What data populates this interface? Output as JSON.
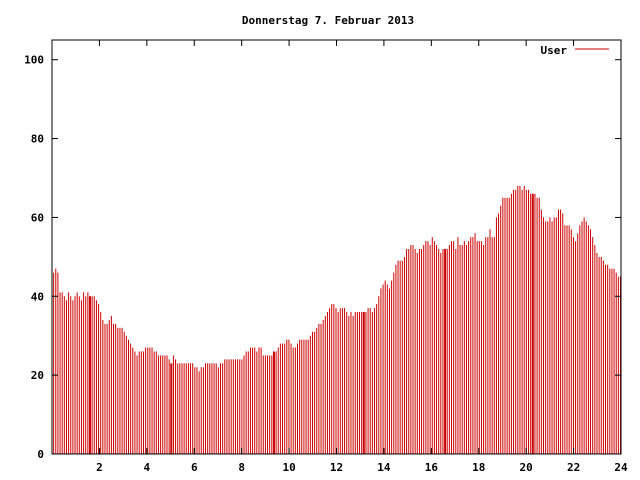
{
  "chart_data": {
    "type": "bar",
    "title": "Donnerstag 7. Februar 2013",
    "xlabel": "",
    "ylabel": "",
    "xlim": [
      0,
      24
    ],
    "ylim": [
      0,
      105
    ],
    "x_ticks": [
      "2",
      "4",
      "6",
      "8",
      "10",
      "12",
      "14",
      "16",
      "18",
      "20",
      "22",
      "24"
    ],
    "y_ticks": [
      "0",
      "20",
      "40",
      "60",
      "80",
      "100"
    ],
    "grid": false,
    "legend_position": "top-right",
    "series": [
      {
        "name": "User",
        "color": "#cc0000",
        "values": [
          46,
          47,
          46,
          41,
          41,
          40,
          39,
          41,
          40,
          39,
          40,
          41,
          40,
          39,
          41,
          40,
          41,
          40,
          40,
          40,
          39,
          38,
          36,
          34,
          33,
          33,
          34,
          35,
          33,
          33,
          32,
          32,
          32,
          31,
          30,
          29,
          28,
          27,
          26,
          25,
          26,
          26,
          26,
          27,
          27,
          27,
          27,
          26,
          26,
          25,
          25,
          25,
          25,
          25,
          24,
          23,
          25,
          24,
          23,
          23,
          23,
          23,
          23,
          23,
          23,
          23,
          22,
          22,
          21,
          22,
          22,
          23,
          23,
          23,
          23,
          23,
          23,
          22,
          23,
          23,
          24,
          24,
          24,
          24,
          24,
          24,
          24,
          24,
          24,
          25,
          26,
          26,
          27,
          27,
          27,
          26,
          27,
          27,
          25,
          25,
          25,
          25,
          25,
          26,
          26,
          27,
          28,
          28,
          28,
          29,
          29,
          28,
          27,
          27,
          28,
          29,
          29,
          29,
          29,
          29,
          30,
          31,
          31,
          32,
          33,
          33,
          34,
          35,
          36,
          37,
          38,
          38,
          37,
          36,
          37,
          37,
          37,
          36,
          35,
          36,
          35,
          36,
          36,
          36,
          36,
          36,
          36,
          37,
          37,
          36,
          37,
          38,
          40,
          42,
          43,
          44,
          43,
          42,
          44,
          46,
          48,
          49,
          49,
          49,
          50,
          52,
          52,
          53,
          53,
          52,
          51,
          52,
          52,
          53,
          54,
          54,
          53,
          55,
          54,
          53,
          52,
          51,
          52,
          52,
          52,
          53,
          54,
          54,
          52,
          55,
          53,
          53,
          54,
          53,
          54,
          55,
          55,
          56,
          54,
          54,
          54,
          53,
          55,
          55,
          57,
          55,
          55,
          60,
          61,
          63,
          65,
          65,
          65,
          65,
          66,
          67,
          67,
          68,
          68,
          67,
          68,
          67,
          67,
          66,
          66,
          66,
          65,
          65,
          62,
          60,
          59,
          59,
          60,
          59,
          60,
          60,
          62,
          62,
          61,
          58,
          58,
          58,
          57,
          55,
          54,
          56,
          58,
          59,
          60,
          59,
          58,
          57,
          55,
          53,
          51,
          50,
          50,
          49,
          48,
          48,
          47,
          47,
          47,
          46,
          45,
          45
        ],
        "highlight_index": [
          17,
          55,
          103,
          145,
          183,
          224,
          277
        ]
      },
      {
        "name": "User",
        "values": [
          41,
          24,
          25,
          38,
          52,
          57,
          60
        ]
      }
    ]
  }
}
